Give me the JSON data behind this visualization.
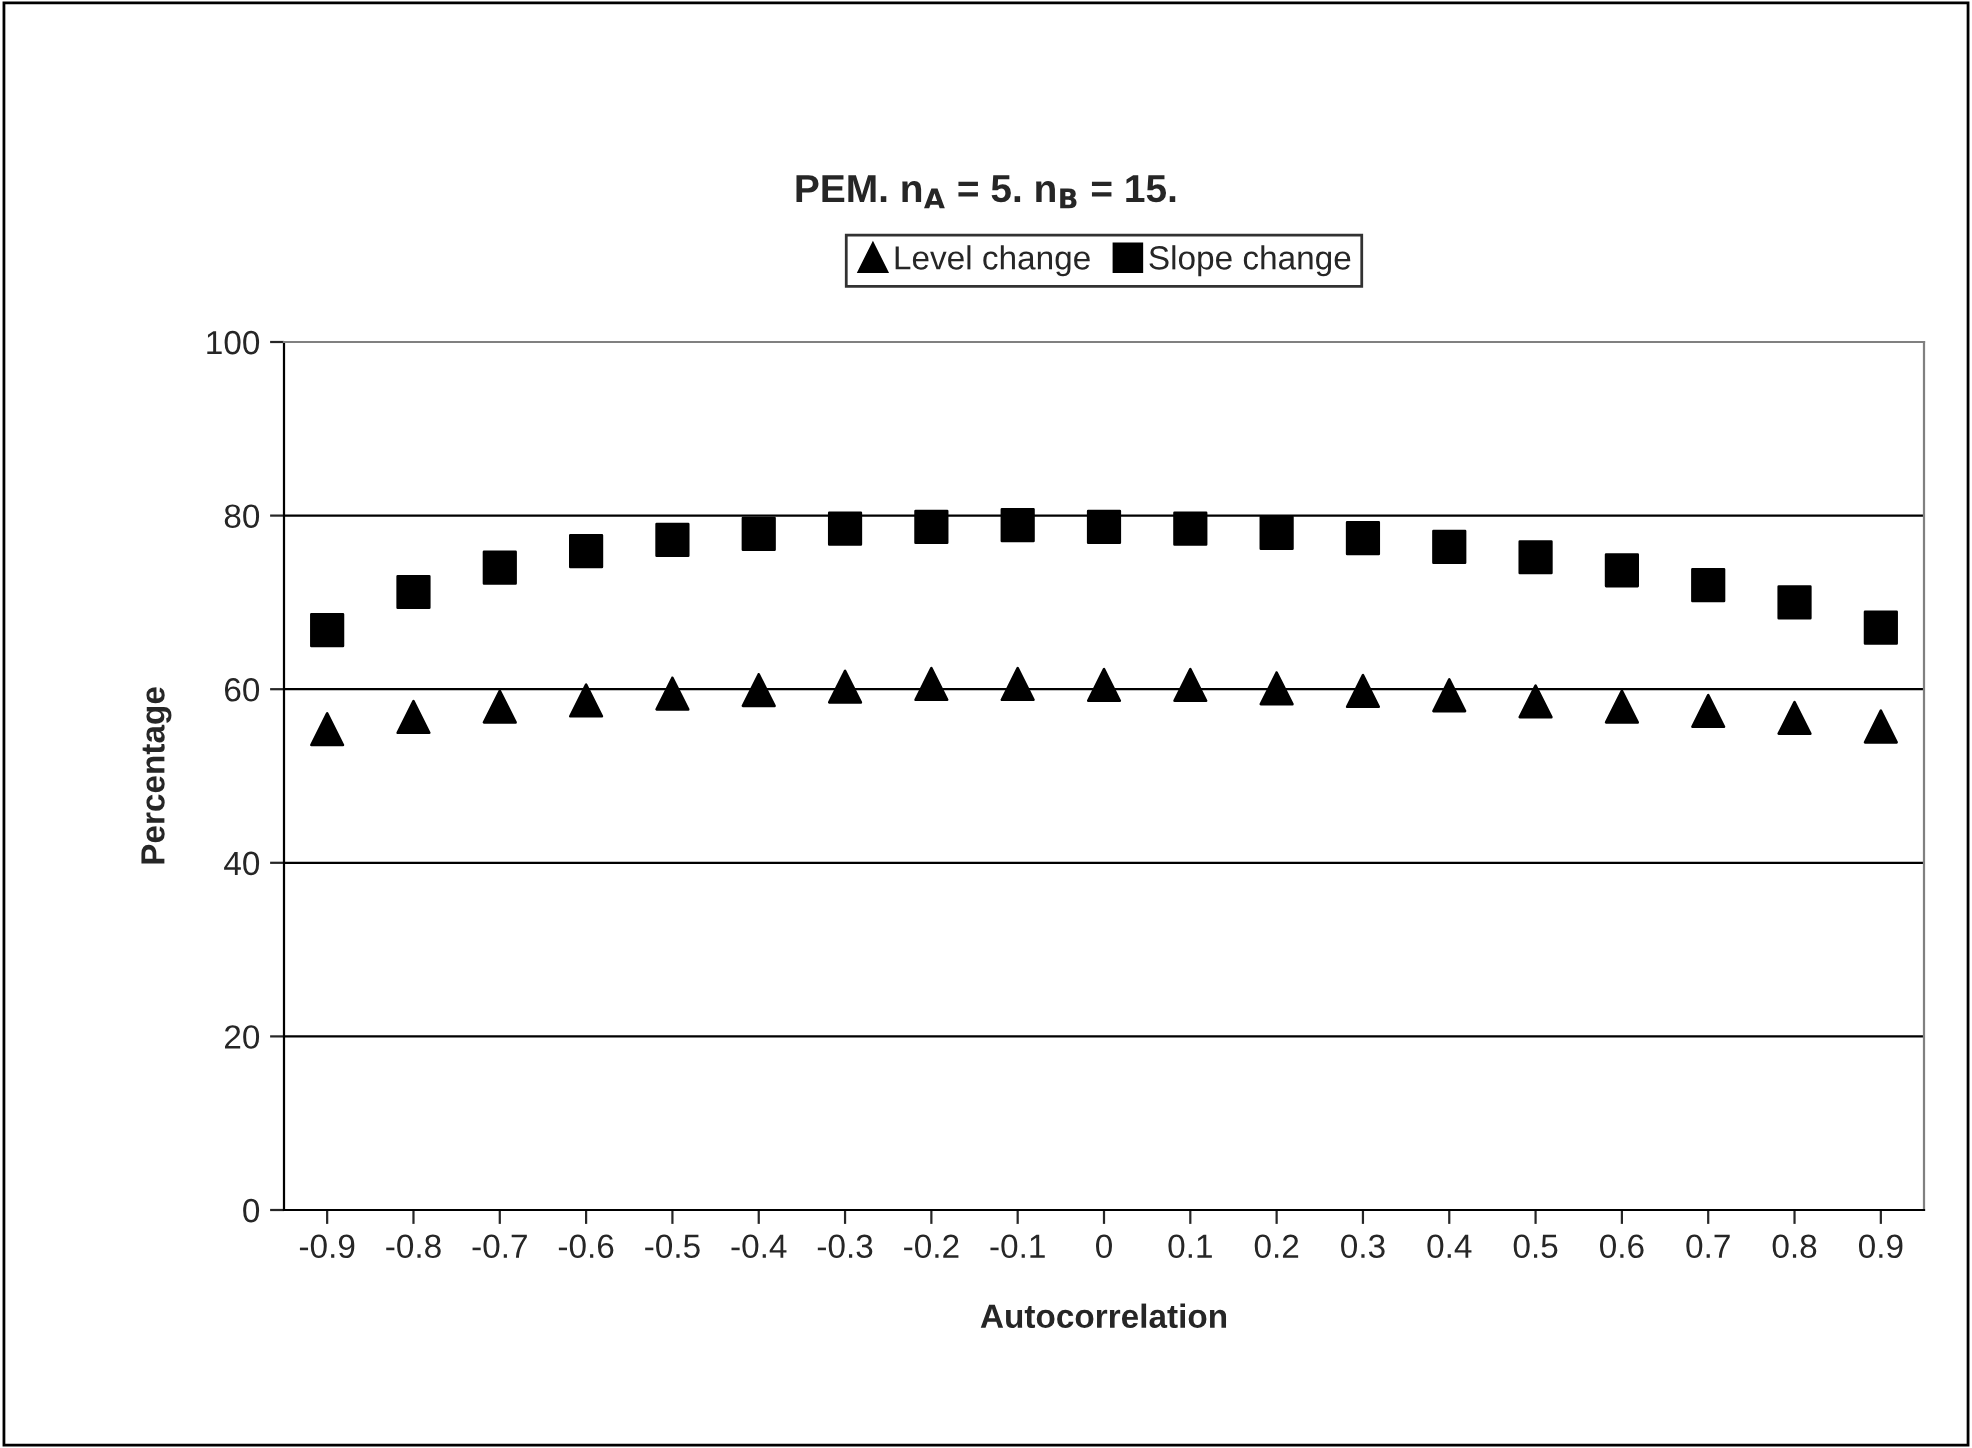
{
  "chart_data": {
    "type": "scatter",
    "title": "PEM. n$_{A}$ = 5. n$_{B}$ = 15.",
    "xlabel": "Autocorrelation",
    "ylabel": "Percentage",
    "categories": [
      "-0.9",
      "-0.8",
      "-0.7",
      "-0.6",
      "-0.5",
      "-0.4",
      "-0.3",
      "-0.2",
      "-0.1",
      "0",
      "0.1",
      "0.2",
      "0.3",
      "0.4",
      "0.5",
      "0.6",
      "0.7",
      "0.8",
      "0.9"
    ],
    "series": [
      {
        "name": "Level change",
        "color": "#000000",
        "marker": "triangle",
        "values": [
          55.4,
          56.8,
          58.0,
          58.7,
          59.5,
          59.9,
          60.3,
          60.6,
          60.6,
          60.5,
          60.5,
          60.1,
          59.8,
          59.3,
          58.6,
          58.0,
          57.5,
          56.7,
          55.7
        ]
      },
      {
        "name": "Slope change",
        "color": "#000000",
        "marker": "square",
        "values": [
          66.8,
          71.2,
          74.0,
          75.9,
          77.2,
          77.9,
          78.5,
          78.7,
          78.9,
          78.7,
          78.5,
          78.0,
          77.4,
          76.4,
          75.2,
          73.7,
          72.0,
          70.0,
          67.1
        ]
      }
    ],
    "ylim": [
      0,
      100
    ],
    "yticks": [
      0,
      20,
      40,
      60,
      80,
      100
    ],
    "grid": "y",
    "legend": "top"
  }
}
